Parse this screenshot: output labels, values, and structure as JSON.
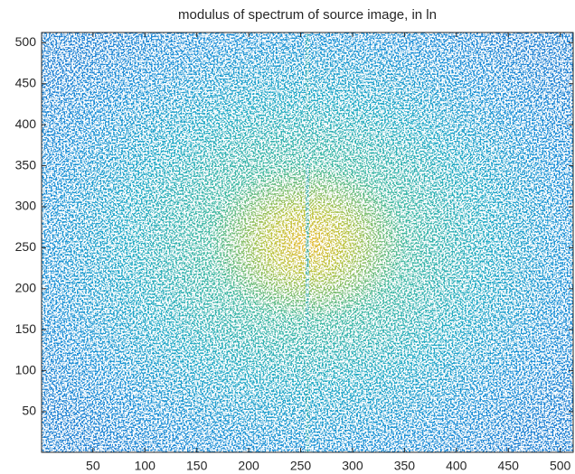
{
  "chart_data": {
    "type": "heatmap",
    "title": "modulus of spectrum of source image, in ln",
    "xlim": [
      0.5,
      512.5
    ],
    "xticks": [
      50,
      100,
      150,
      200,
      250,
      300,
      350,
      400,
      450,
      500
    ],
    "ylim": [
      0.5,
      512.5
    ],
    "yticks": [
      50,
      100,
      150,
      200,
      250,
      300,
      350,
      400,
      450,
      500
    ],
    "grid": false
  }
}
